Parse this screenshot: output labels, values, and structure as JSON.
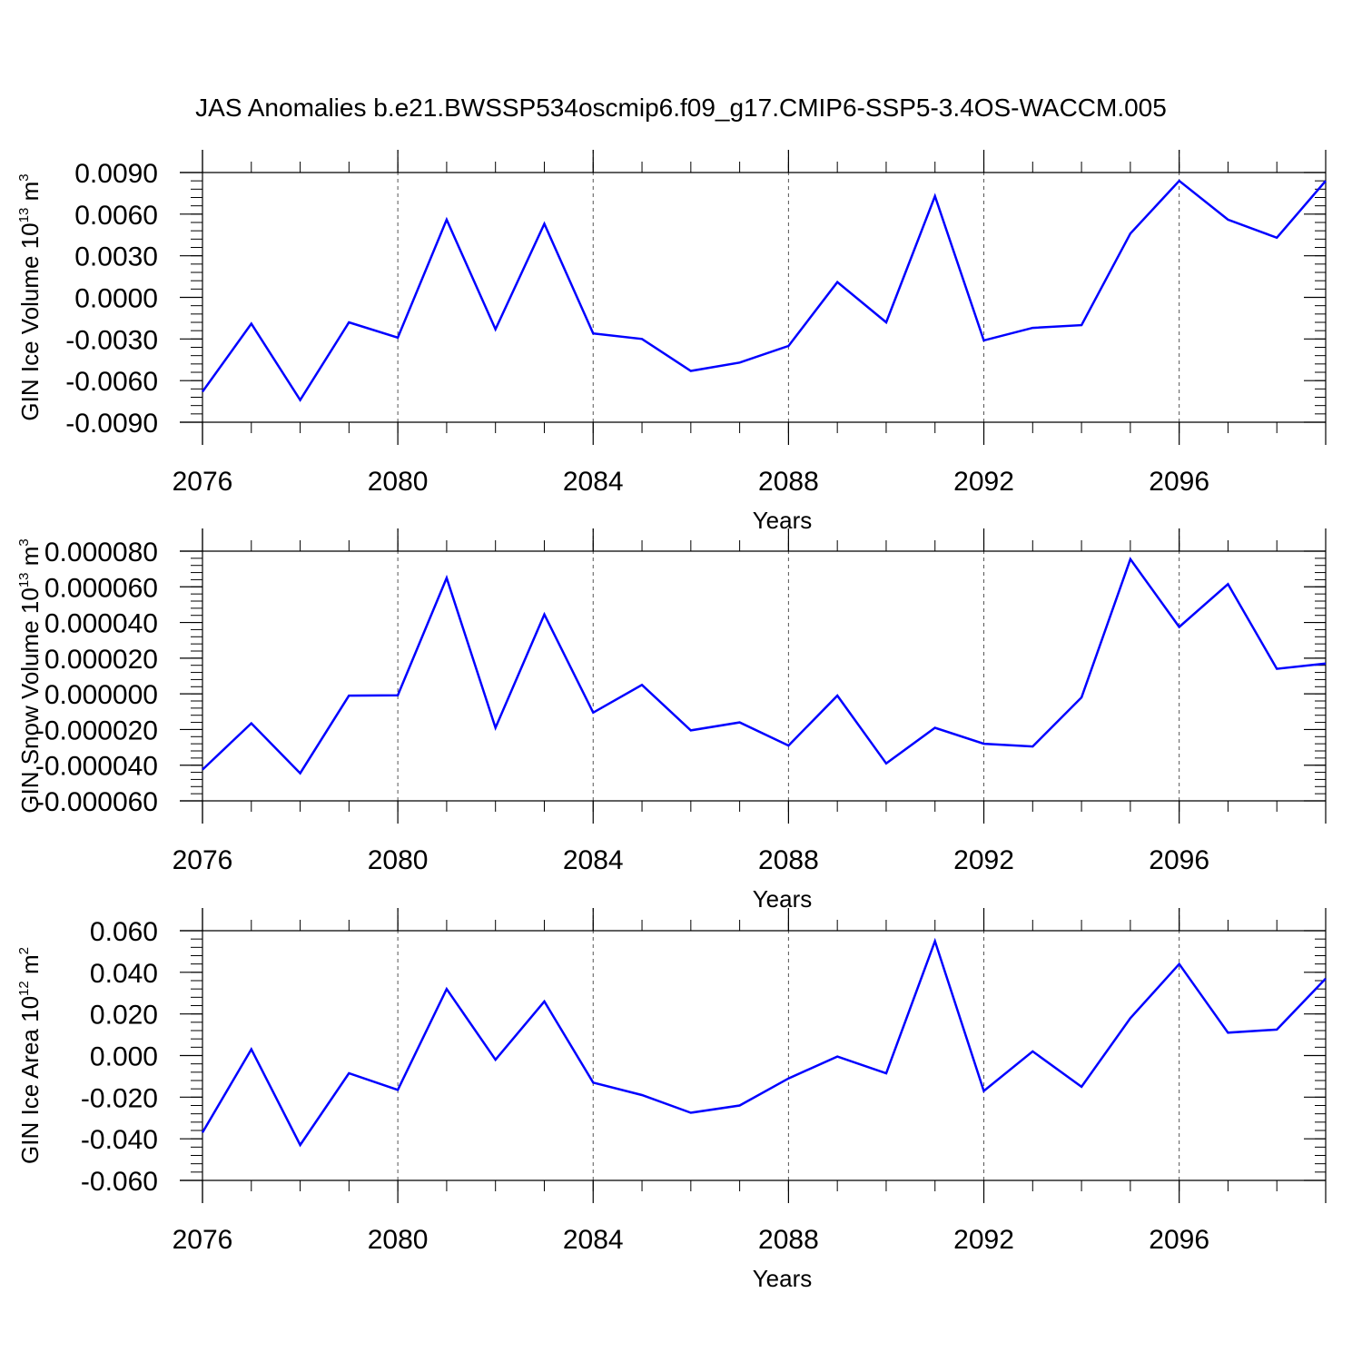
{
  "title": "JAS Anomalies b.e21.BWSSP534oscmip6.f09_g17.CMIP6-SSP5-3.4OS-WACCM.005",
  "colors": {
    "line": "#0000ff",
    "axis": "#000000",
    "grid": "#555555"
  },
  "chart_data": [
    {
      "type": "line",
      "ylabel_main": "GIN Ice Volume 10",
      "ylabel_exp": "13",
      "ylabel_unit": " m",
      "ylabel_unit_exp": "3",
      "xlabel": "Years",
      "xlim": [
        2076,
        2099
      ],
      "ylim": [
        -0.009,
        0.009
      ],
      "yticks": [
        -0.009,
        -0.006,
        -0.003,
        0.0,
        0.003,
        0.006,
        0.009
      ],
      "yticklabels": [
        "-0.0090",
        "-0.0060",
        "-0.0030",
        "0.0000",
        "0.0030",
        "0.0060",
        "0.0090"
      ],
      "yminor": 0.0006,
      "xticks": [
        2076,
        2080,
        2084,
        2088,
        2092,
        2096
      ],
      "xticklabels": [
        "2076",
        "2080",
        "2084",
        "2088",
        "2092",
        "2096"
      ],
      "x": [
        2076,
        2077,
        2078,
        2079,
        2080,
        2081,
        2082,
        2083,
        2084,
        2085,
        2086,
        2087,
        2088,
        2089,
        2090,
        2091,
        2092,
        2093,
        2094,
        2095,
        2096,
        2097,
        2098,
        2099
      ],
      "series": [
        {
          "values": [
            -0.0068,
            -0.0019,
            -0.0074,
            -0.0018,
            -0.0029,
            0.0056,
            -0.0023,
            0.0053,
            -0.0026,
            -0.003,
            -0.0053,
            -0.0047,
            -0.0035,
            0.0011,
            -0.0018,
            0.0073,
            -0.0031,
            -0.0022,
            -0.002,
            0.0046,
            0.0084,
            0.0056,
            0.0043,
            0.0084
          ]
        }
      ]
    },
    {
      "type": "line",
      "ylabel_main": "GIN Snow Volume 10",
      "ylabel_exp": "13",
      "ylabel_unit": " m",
      "ylabel_unit_exp": "3",
      "xlabel": "Years",
      "xlim": [
        2076,
        2099
      ],
      "ylim": [
        -6e-05,
        8e-05
      ],
      "yticks": [
        -6e-05,
        -4e-05,
        -2e-05,
        0.0,
        2e-05,
        4e-05,
        6e-05,
        8e-05
      ],
      "yticklabels": [
        "-0.000060",
        "-0.000040",
        "-0.000020",
        "0.000000",
        "0.000020",
        "0.000040",
        "0.000060",
        "0.000080"
      ],
      "yminor": 4e-06,
      "xticks": [
        2076,
        2080,
        2084,
        2088,
        2092,
        2096
      ],
      "xticklabels": [
        "2076",
        "2080",
        "2084",
        "2088",
        "2092",
        "2096"
      ],
      "x": [
        2076,
        2077,
        2078,
        2079,
        2080,
        2081,
        2082,
        2083,
        2084,
        2085,
        2086,
        2087,
        2088,
        2089,
        2090,
        2091,
        2092,
        2093,
        2094,
        2095,
        2096,
        2097,
        2098,
        2099
      ],
      "series": [
        {
          "values": [
            -4.25e-05,
            -1.65e-05,
            -4.45e-05,
            -1e-06,
            -8e-07,
            6.5e-05,
            -1.9e-05,
            4.45e-05,
            -1.05e-05,
            5e-06,
            -2.05e-05,
            -1.6e-05,
            -2.9e-05,
            -1e-06,
            -3.9e-05,
            -1.9e-05,
            -2.8e-05,
            -2.95e-05,
            -2e-06,
            7.55e-05,
            3.75e-05,
            6.15e-05,
            1.4e-05,
            1.7e-05
          ]
        }
      ]
    },
    {
      "type": "line",
      "ylabel_main": "GIN Ice Area 10",
      "ylabel_exp": "12",
      "ylabel_unit": " m",
      "ylabel_unit_exp": "2",
      "xlabel": "Years",
      "xlim": [
        2076,
        2099
      ],
      "ylim": [
        -0.06,
        0.06
      ],
      "yticks": [
        -0.06,
        -0.04,
        -0.02,
        0.0,
        0.02,
        0.04,
        0.06
      ],
      "yticklabels": [
        "-0.060",
        "-0.040",
        "-0.020",
        "0.000",
        "0.020",
        "0.040",
        "0.060"
      ],
      "yminor": 0.004,
      "xticks": [
        2076,
        2080,
        2084,
        2088,
        2092,
        2096
      ],
      "xticklabels": [
        "2076",
        "2080",
        "2084",
        "2088",
        "2092",
        "2096"
      ],
      "x": [
        2076,
        2077,
        2078,
        2079,
        2080,
        2081,
        2082,
        2083,
        2084,
        2085,
        2086,
        2087,
        2088,
        2089,
        2090,
        2091,
        2092,
        2093,
        2094,
        2095,
        2096,
        2097,
        2098,
        2099
      ],
      "series": [
        {
          "values": [
            -0.037,
            0.003,
            -0.043,
            -0.0085,
            -0.0165,
            0.032,
            -0.002,
            0.026,
            -0.013,
            -0.019,
            -0.0275,
            -0.024,
            -0.011,
            -0.0005,
            -0.0085,
            0.055,
            -0.017,
            0.002,
            -0.015,
            0.018,
            0.044,
            0.011,
            0.0125,
            0.037
          ]
        }
      ]
    }
  ]
}
